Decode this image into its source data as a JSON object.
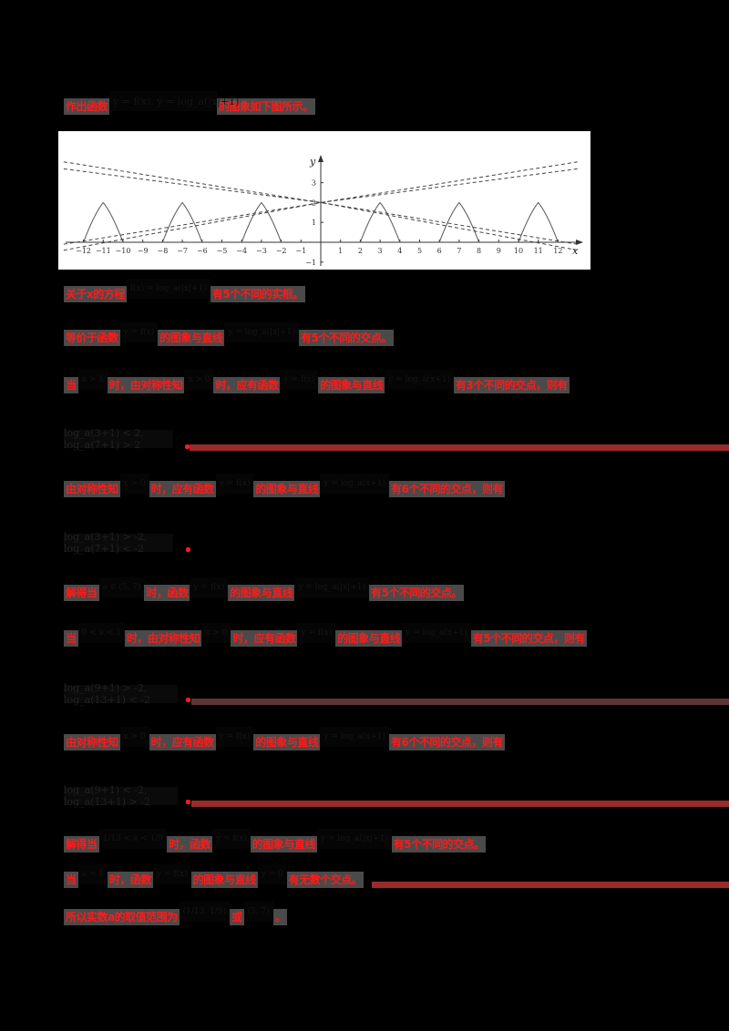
{
  "document": {
    "intro": {
      "prefix": "作出函数",
      "formula": "y = f(x), y = log_a(|x|+1)",
      "suffix": "的图象如下图所示。"
    },
    "lines": [
      {
        "id": "l1",
        "parts": [
          {
            "t": "text",
            "v": "关于x的方程"
          },
          {
            "t": "math",
            "v": "f(x) = log_a(|x|+1)"
          },
          {
            "t": "text",
            "v": "有5个不同的实根。"
          }
        ]
      },
      {
        "id": "l2",
        "parts": [
          {
            "t": "text",
            "v": "等价于函数"
          },
          {
            "t": "math",
            "v": "y = f(x)"
          },
          {
            "t": "text",
            "v": "的图象与直线"
          },
          {
            "t": "math",
            "v": "y = log_a(|x|+1)"
          },
          {
            "t": "text",
            "v": "有5个不同的交点。"
          }
        ]
      },
      {
        "id": "l3",
        "parts": [
          {
            "t": "text",
            "v": "当"
          },
          {
            "t": "math",
            "v": "a > 1"
          },
          {
            "t": "text",
            "v": "时，由对称性知"
          },
          {
            "t": "math",
            "v": "x > 0"
          },
          {
            "t": "text",
            "v": "时，应有函数"
          },
          {
            "t": "math",
            "v": "y = f(x)"
          },
          {
            "t": "text",
            "v": "的图象与直线"
          },
          {
            "t": "math",
            "v": "y = log_a(x+1)"
          },
          {
            "t": "text",
            "v": "有3个不同的交点，则有"
          }
        ]
      },
      {
        "id": "l4",
        "parts": [
          {
            "t": "text",
            "v": "由对称性知"
          },
          {
            "t": "math",
            "v": "x > 0"
          },
          {
            "t": "text",
            "v": "时，应有函数"
          },
          {
            "t": "math",
            "v": "y = f(x)"
          },
          {
            "t": "text",
            "v": "的图象与直线"
          },
          {
            "t": "math",
            "v": "y = log_a(x+1)"
          },
          {
            "t": "text",
            "v": "有6个不同的交点，则有"
          }
        ]
      },
      {
        "id": "l5",
        "parts": [
          {
            "t": "text",
            "v": "解得当"
          },
          {
            "t": "math",
            "v": "a ∈ (5, 7)"
          },
          {
            "t": "text",
            "v": "时，函数"
          },
          {
            "t": "math",
            "v": "y = f(x)"
          },
          {
            "t": "text",
            "v": "的图象与直线"
          },
          {
            "t": "math",
            "v": "y = log_a(|x|+1)"
          },
          {
            "t": "text",
            "v": "有5个不同的交点。"
          }
        ]
      },
      {
        "id": "l6",
        "parts": [
          {
            "t": "text",
            "v": "当"
          },
          {
            "t": "math",
            "v": "0 < a < 1"
          },
          {
            "t": "text",
            "v": "时，由对称性知"
          },
          {
            "t": "math",
            "v": "x > 0"
          },
          {
            "t": "text",
            "v": "时，应有函数"
          },
          {
            "t": "math",
            "v": "y = f(x)"
          },
          {
            "t": "text",
            "v": "的图象与直线"
          },
          {
            "t": "math",
            "v": "y = log_a(x+1)"
          },
          {
            "t": "text",
            "v": "有5个不同的交点，则有"
          }
        ]
      },
      {
        "id": "l7",
        "parts": [
          {
            "t": "text",
            "v": "由对称性知"
          },
          {
            "t": "math",
            "v": "x > 0"
          },
          {
            "t": "text",
            "v": "时，应有函数"
          },
          {
            "t": "math",
            "v": "y = f(x)"
          },
          {
            "t": "text",
            "v": "的图象与直线"
          },
          {
            "t": "math",
            "v": "y = log_a(x+1)"
          },
          {
            "t": "text",
            "v": "有6个不同的交点，则有"
          }
        ]
      },
      {
        "id": "l8",
        "parts": [
          {
            "t": "text",
            "v": "解得当"
          },
          {
            "t": "math",
            "v": "1/13 < a < 1/9"
          },
          {
            "t": "text",
            "v": "时，函数"
          },
          {
            "t": "math",
            "v": "y = f(x)"
          },
          {
            "t": "text",
            "v": "的图象与直线"
          },
          {
            "t": "math",
            "v": "y = log_a(|x|+1)"
          },
          {
            "t": "text",
            "v": "有5个不同的交点。"
          }
        ]
      },
      {
        "id": "l9",
        "parts": [
          {
            "t": "text",
            "v": "当"
          },
          {
            "t": "math",
            "v": "a = 1"
          },
          {
            "t": "text",
            "v": "时，函数"
          },
          {
            "t": "math",
            "v": "y = f(x)"
          },
          {
            "t": "text",
            "v": "的图象与直线"
          },
          {
            "t": "math",
            "v": "y = 0"
          },
          {
            "t": "text",
            "v": "有无数个交点。"
          }
        ]
      },
      {
        "id": "l10",
        "parts": [
          {
            "t": "text",
            "v": "所以实数a的取值范围为"
          },
          {
            "t": "math",
            "v": "(1/13, 1/9)"
          },
          {
            "t": "text",
            "v": "或"
          },
          {
            "t": "math",
            "v": "(5, 7)"
          },
          {
            "t": "text",
            "v": "。"
          }
        ]
      }
    ],
    "formulas": [
      {
        "id": "f1",
        "v": "log_a(3+1) < 2, log_a(7+1) > 2"
      },
      {
        "id": "f2",
        "v": "log_a(3+1) > -2, log_a(7+1) < -2"
      },
      {
        "id": "f3",
        "v": "log_a(9+1) > -2, log_a(13+1) < -2"
      },
      {
        "id": "f4",
        "v": "log_a(9+1) < -2, log_a(13+1) > -2"
      }
    ]
  },
  "chart_data": {
    "type": "line",
    "title": "",
    "xlabel": "x",
    "ylabel": "y",
    "xlim": [
      -13,
      13
    ],
    "ylim": [
      -1.5,
      3.5
    ],
    "x_ticks": [
      -12,
      -11,
      -10,
      -9,
      -8,
      -7,
      -6,
      -5,
      -4,
      -3,
      -2,
      -1,
      1,
      2,
      3,
      4,
      5,
      6,
      7,
      8,
      9,
      10,
      11,
      12
    ],
    "y_ticks": [
      -1,
      1,
      2,
      3
    ],
    "grid": false,
    "series": [
      {
        "name": "y = f(x) (periodic arches, period 4, on |x| in [2,4]∪[6,8]∪[10,12])",
        "style": "solid",
        "segments": [
          {
            "x": [
              -12,
              -11,
              -10
            ],
            "y": [
              0,
              2,
              0
            ]
          },
          {
            "x": [
              -8,
              -7,
              -6
            ],
            "y": [
              0,
              2,
              0
            ]
          },
          {
            "x": [
              -4,
              -3,
              -2
            ],
            "y": [
              0,
              2,
              0
            ]
          },
          {
            "x": [
              2,
              3,
              4
            ],
            "y": [
              0,
              2,
              0
            ]
          },
          {
            "x": [
              6,
              7,
              8
            ],
            "y": [
              0,
              2,
              0
            ]
          },
          {
            "x": [
              10,
              11,
              12
            ],
            "y": [
              0,
              2,
              0
            ]
          }
        ]
      },
      {
        "name": "dashed line A (rising right)",
        "style": "dashed",
        "x": [
          -13,
          0,
          13
        ],
        "y": [
          -0.1,
          2,
          4.05
        ]
      },
      {
        "name": "dashed line B (rising right)",
        "style": "dashed",
        "x": [
          -13,
          0,
          13
        ],
        "y": [
          -0.4,
          2,
          3.7
        ]
      },
      {
        "name": "dashed line C (falling right)",
        "style": "dashed",
        "x": [
          -13,
          0,
          13
        ],
        "y": [
          4.05,
          2,
          -0.1
        ]
      },
      {
        "name": "dashed line D (falling right)",
        "style": "dashed",
        "x": [
          -13,
          0,
          13
        ],
        "y": [
          3.7,
          2,
          -0.4
        ]
      }
    ],
    "annotations": [
      "2 (intersection of dashed lines at (0,2))"
    ]
  }
}
